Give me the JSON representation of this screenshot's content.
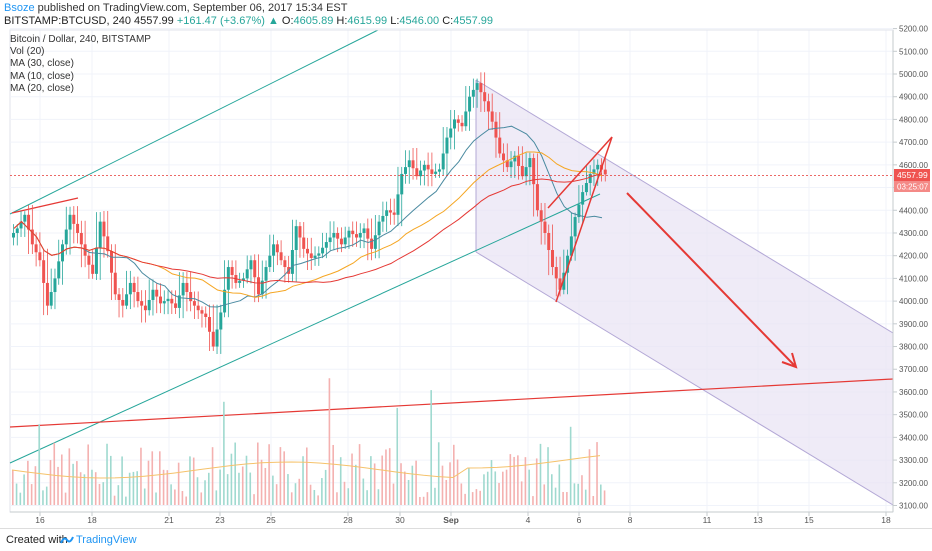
{
  "header": {
    "author": "Bsoze",
    "published": "published on TradingView.com, September 06, 2017 15:34 EST"
  },
  "ticker": {
    "symbol": "BITSTAMP:BTCUSD, 240",
    "last": "4557.99",
    "change": "+161.47 (+3.67%)",
    "o_label": "O:",
    "o": "4605.89",
    "h_label": "H:",
    "h": "4615.99",
    "l_label": "L:",
    "l": "4546.00",
    "c_label": "C:",
    "c": "4557.99"
  },
  "legend": [
    "Bitcoin / Dollar, 240, BITSTAMP",
    "Vol (20)",
    "MA (30, close)",
    "MA (10, close)",
    "MA (20, close)"
  ],
  "footer": {
    "created": "Created with",
    "brand": "TradingView"
  },
  "chart_data": {
    "type": "candlestick",
    "ylim": [
      3050,
      5200
    ],
    "y_ticks": [
      3100,
      3200,
      3300,
      3400,
      3500,
      3600,
      3700,
      3800,
      3900,
      4000,
      4100,
      4200,
      4300,
      4400,
      4500,
      4600,
      4700,
      4800,
      4900,
      5000,
      5100,
      5200
    ],
    "x_ticks": [
      "16",
      "18",
      "21",
      "23",
      "25",
      "28",
      "30",
      "Sep",
      "4",
      "6",
      "8",
      "11",
      "13",
      "15",
      "18"
    ],
    "last_price_label": "4557.99",
    "countdown_label": "03:25:07",
    "close_path": [
      4320,
      4380,
      4250,
      4180,
      3980,
      4100,
      4250,
      4380,
      4300,
      4200,
      4120,
      4350,
      4220,
      4030,
      3980,
      4080,
      4000,
      3960,
      4050,
      3990,
      4010,
      3970,
      4080,
      4000,
      3960,
      3930,
      3800,
      3950,
      4150,
      4080,
      4100,
      4180,
      4030,
      4150,
      4250,
      4180,
      4120,
      4330,
      4230,
      4190,
      4210,
      4260,
      4300,
      4250,
      4310,
      4280,
      4320,
      4230,
      4350,
      4400,
      4380,
      4560,
      4620,
      4550,
      4600,
      4560,
      4580,
      4720,
      4800,
      4770,
      4900,
      4960,
      4880,
      4790,
      4650,
      4590,
      4640,
      4550,
      4630,
      4400,
      4300,
      4150,
      4050,
      4200,
      4370,
      4480,
      4560,
      4600,
      4557.99
    ],
    "ma_colors": {
      "ma10": "#4a8aa0",
      "ma20": "#f5a623",
      "ma30": "#e53935"
    },
    "colors": {
      "up": "#26a69a",
      "down": "#ef5350",
      "channel_fill": "#e8e3f3",
      "channel_line": "#b3a8d6",
      "trend_green": "#26a69a",
      "trend_red": "#e53935"
    }
  }
}
